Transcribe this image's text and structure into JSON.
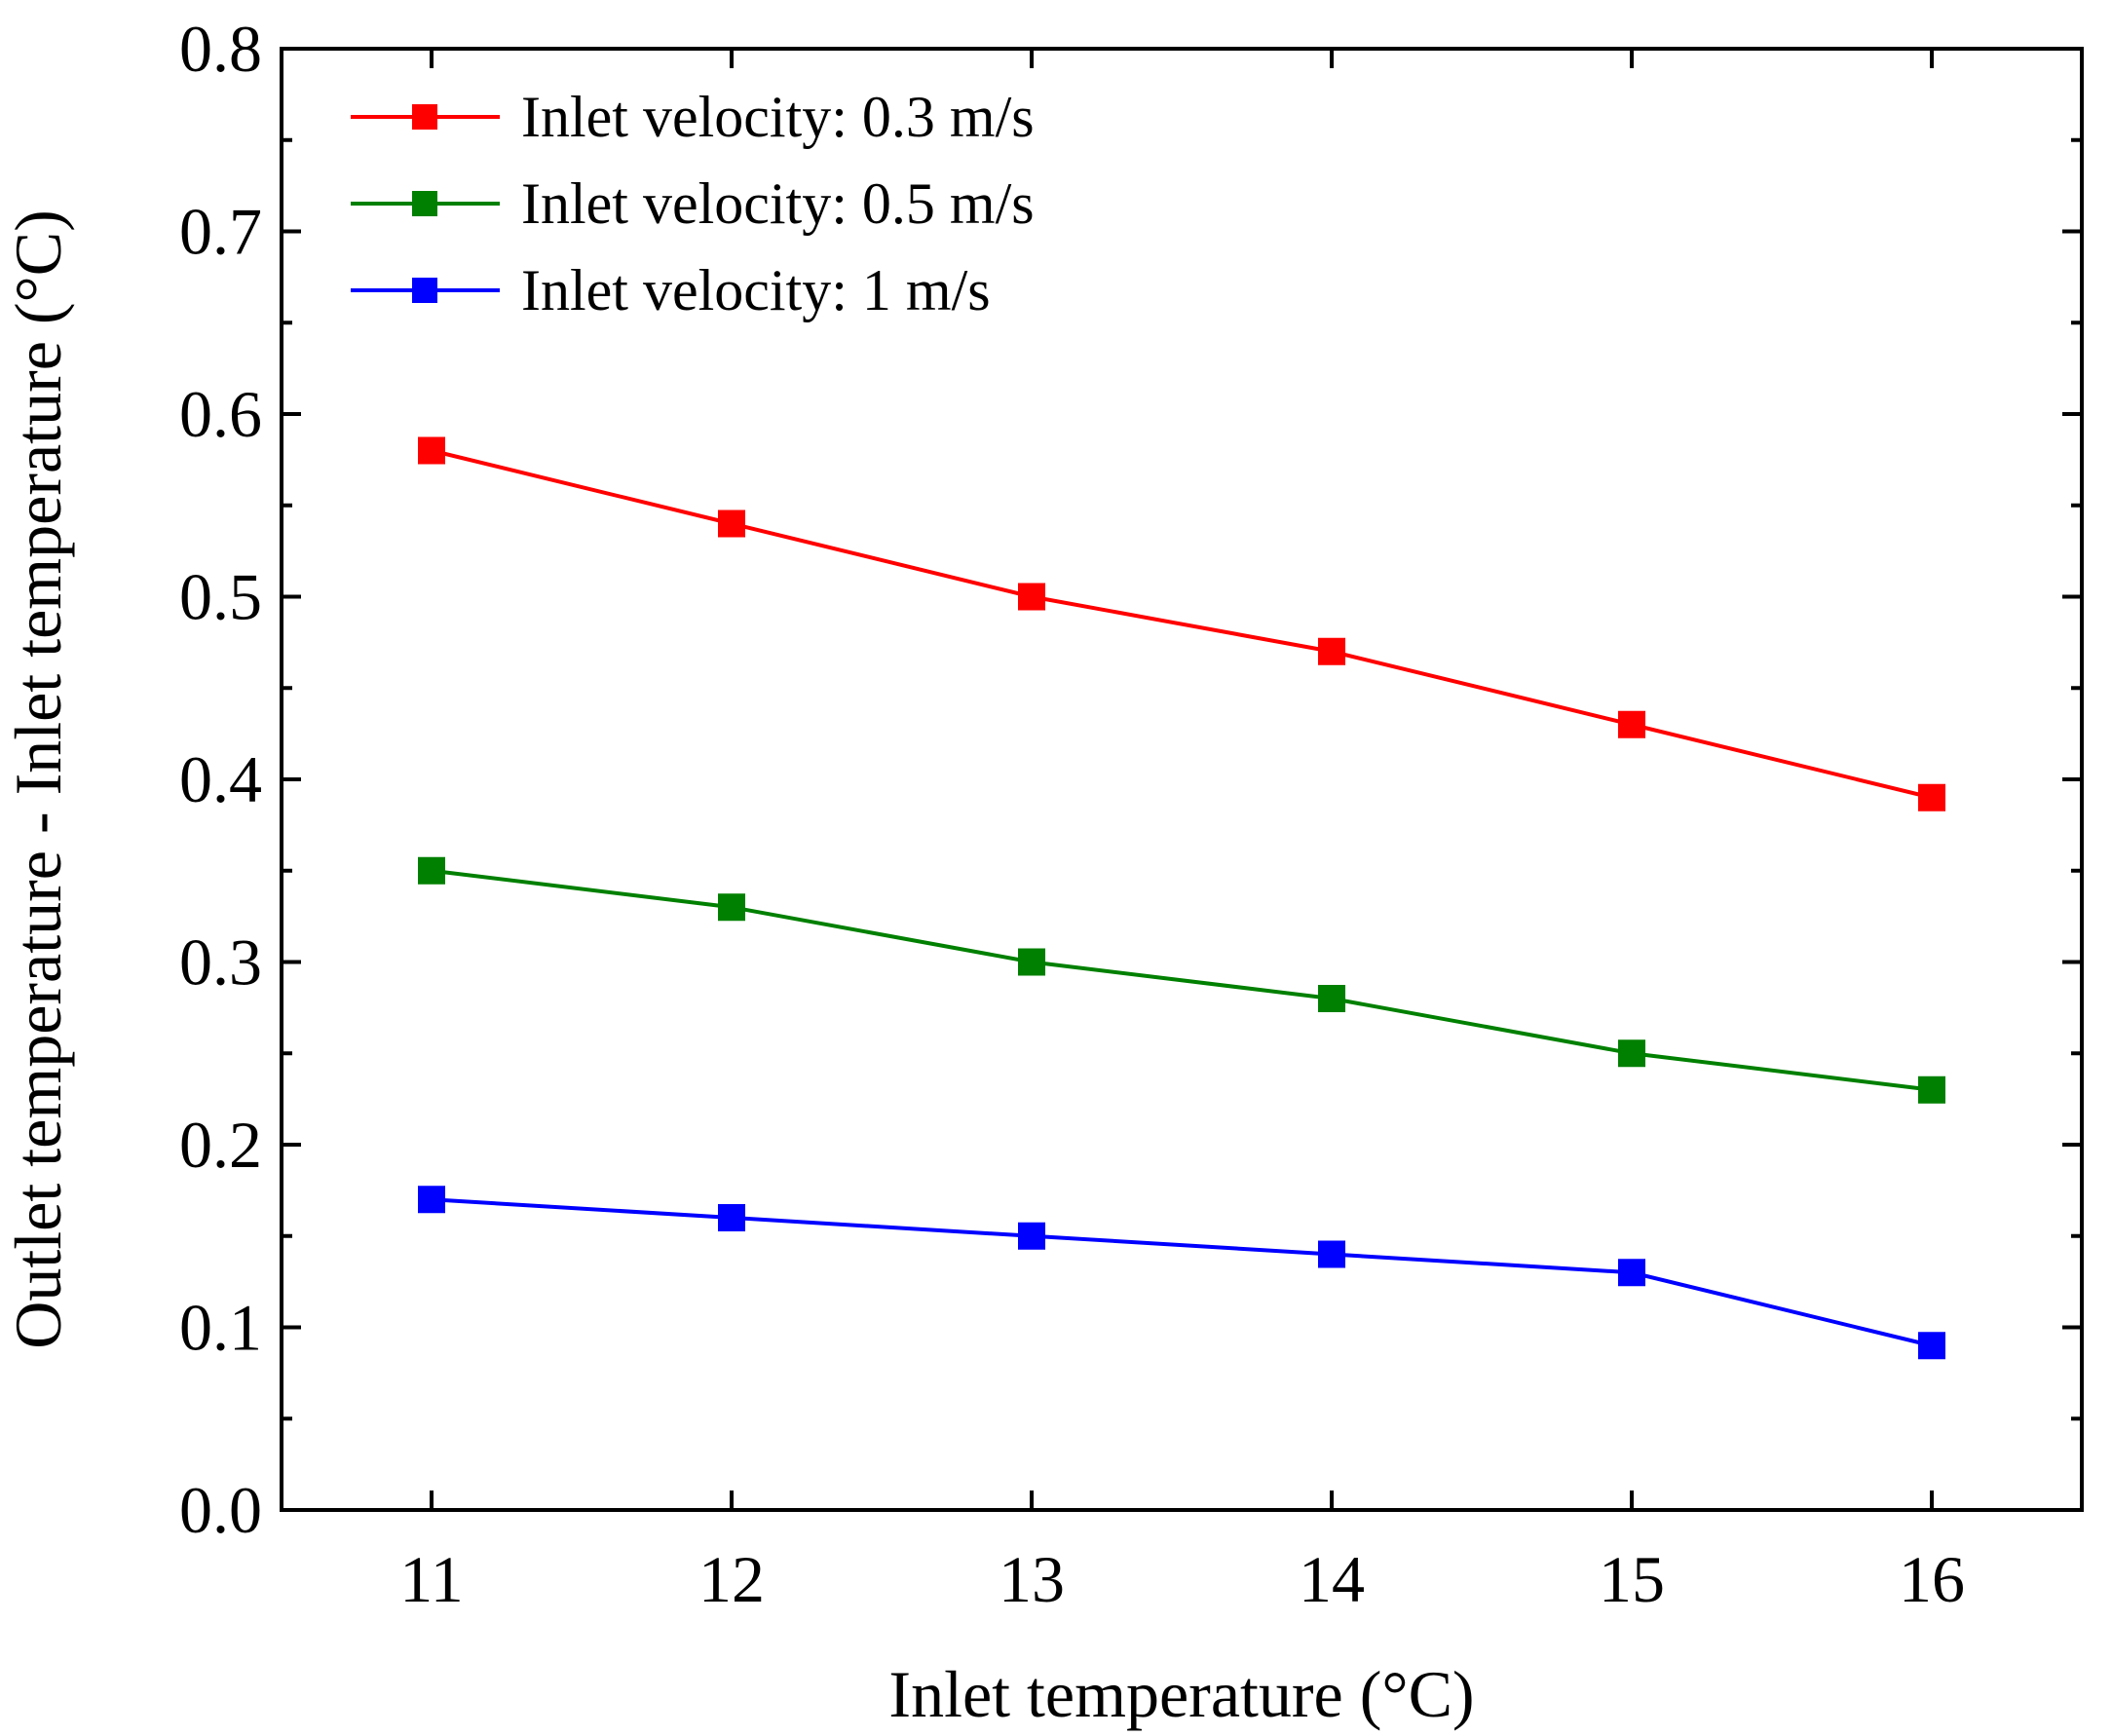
{
  "chart_data": {
    "type": "line",
    "title": "",
    "xlabel": "Inlet temperature (°C)",
    "ylabel": "Outlet temperature - Inlet temperature (°C)",
    "x": [
      11,
      12,
      13,
      14,
      15,
      16
    ],
    "x_ticks": [
      "11",
      "12",
      "13",
      "14",
      "15",
      "16"
    ],
    "xlim": [
      10.5,
      16.5
    ],
    "ylim": [
      0.0,
      0.8
    ],
    "y_ticks": [
      "0.0",
      "0.1",
      "0.2",
      "0.3",
      "0.4",
      "0.5",
      "0.6",
      "0.7",
      "0.8"
    ],
    "grid": false,
    "legend_position": "top-left",
    "series": [
      {
        "name": "Inlet velocity: 0.3 m/s",
        "color": "#ff0000",
        "marker": "square",
        "values": [
          0.58,
          0.54,
          0.5,
          0.47,
          0.43,
          0.39
        ]
      },
      {
        "name": "Inlet velocity: 0.5 m/s",
        "color": "#008000",
        "marker": "square",
        "values": [
          0.35,
          0.33,
          0.3,
          0.28,
          0.25,
          0.23
        ]
      },
      {
        "name": "Inlet velocity: 1 m/s",
        "color": "#0000ff",
        "marker": "square",
        "values": [
          0.17,
          0.16,
          0.15,
          0.14,
          0.13,
          0.09
        ]
      }
    ]
  }
}
